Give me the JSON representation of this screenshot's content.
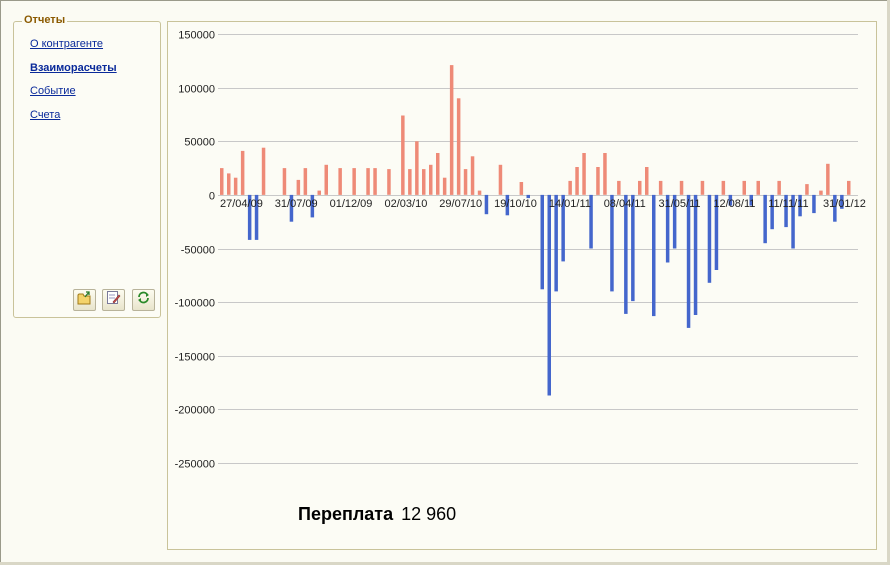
{
  "reports": {
    "title": "Отчеты",
    "links": [
      {
        "label": "О контрагенте",
        "active": false
      },
      {
        "label": "Взаиморасчеты",
        "active": true
      },
      {
        "label": "Событие",
        "active": false
      },
      {
        "label": "Счета",
        "active": false
      }
    ],
    "toolbar_icons": [
      "open-folder-icon",
      "edit-report-icon",
      "refresh-icon"
    ]
  },
  "summary": {
    "label": "Переплата",
    "value": "12 960"
  },
  "colors": {
    "positive": "#ee8a77",
    "negative": "#4466cc",
    "grid": "#c8c8c8"
  },
  "chart_data": {
    "type": "bar",
    "title": "",
    "xlabel": "",
    "ylabel": "",
    "ylim": [
      -250000,
      150000
    ],
    "yticks": [
      150000,
      100000,
      50000,
      0,
      -50000,
      -100000,
      -150000,
      -200000,
      -250000
    ],
    "grid": true,
    "legend": "none",
    "x_tick_labels": [
      "27/04/09",
      "31/07/09",
      "01/12/09",
      "02/03/10",
      "29/07/10",
      "19/10/10",
      "14/01/11",
      "08/04/11",
      "31/05/11",
      "12/08/11",
      "11/11/11",
      "31/01/12"
    ],
    "values": [
      25000,
      20000,
      16000,
      41000,
      -42000,
      -42000,
      44000,
      0,
      0,
      25000,
      -25000,
      14000,
      25000,
      -21000,
      4000,
      28000,
      0,
      25000,
      0,
      25000,
      0,
      25000,
      25000,
      0,
      24000,
      0,
      74000,
      24000,
      50000,
      24000,
      28000,
      39000,
      16000,
      121000,
      90000,
      24000,
      36000,
      4000,
      -18000,
      0,
      28000,
      -19000,
      0,
      12000,
      -3000,
      0,
      -88000,
      -187000,
      -90000,
      -62000,
      13000,
      26000,
      39000,
      -50000,
      26000,
      39000,
      -90000,
      13000,
      -111000,
      -99000,
      13000,
      26000,
      -113000,
      13000,
      -63000,
      -50000,
      13000,
      -124000,
      -112000,
      13000,
      -82000,
      -70000,
      13000,
      -10000,
      0,
      13000,
      -10000,
      13000,
      -45000,
      -32000,
      13000,
      -30000,
      -50000,
      -20000,
      10000,
      -17000,
      4000,
      29000,
      -25000,
      -13000,
      13000
    ]
  }
}
